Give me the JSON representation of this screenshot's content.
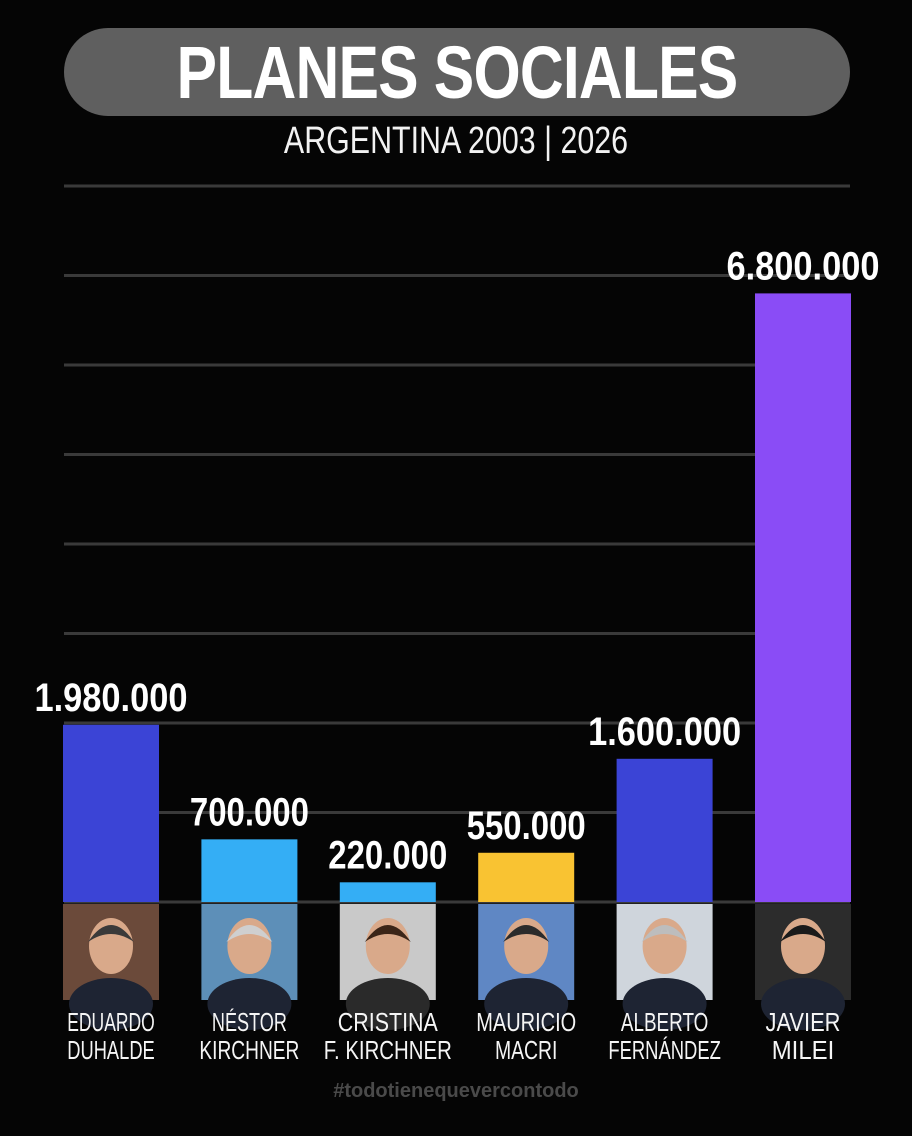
{
  "header": {
    "title": "PLANES SOCIALES",
    "subtitle": "ARGENTINA 2003 | 2026"
  },
  "chart_data": {
    "type": "bar",
    "categories": [
      "EDUARDO DUHALDE",
      "NÉSTOR KIRCHNER",
      "CRISTINA F. KIRCHNER",
      "MAURICIO MACRI",
      "ALBERTO FERNÁNDEZ",
      "JAVIER MILEI"
    ],
    "category_lines": [
      [
        "EDUARDO",
        "DUHALDE"
      ],
      [
        "NÉSTOR",
        "KIRCHNER"
      ],
      [
        "CRISTINA",
        "F. KIRCHNER"
      ],
      [
        "MAURICIO",
        "MACRI"
      ],
      [
        "ALBERTO",
        "FERNÁNDEZ"
      ],
      [
        "JAVIER",
        "MILEI"
      ]
    ],
    "values": [
      1980000,
      700000,
      220000,
      550000,
      1600000,
      6800000
    ],
    "value_labels": [
      "1.980.000",
      "700.000",
      "220.000",
      "550.000",
      "1.600.000",
      "6.800.000"
    ],
    "bar_colors": [
      "#3b44d6",
      "#34aef5",
      "#34aef5",
      "#f9c332",
      "#3b44d6",
      "#8a4cf6"
    ],
    "ylim": [
      0,
      8000000
    ],
    "grid": true,
    "legend": "none"
  },
  "footer": {
    "hashtag": "#todotienequevercontodo"
  }
}
